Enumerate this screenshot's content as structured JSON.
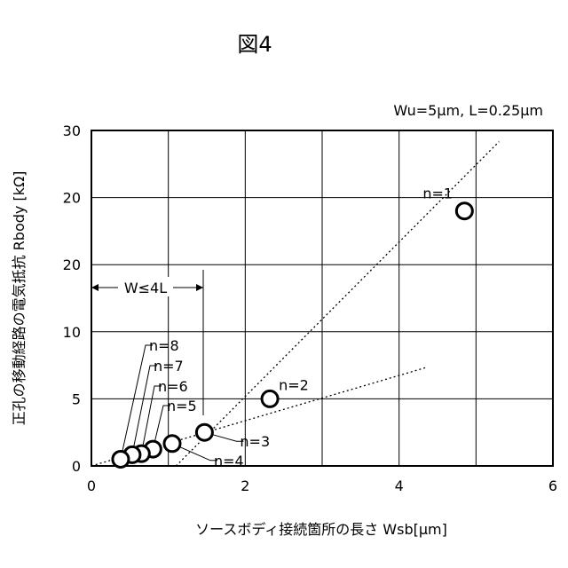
{
  "figure_label": "図4",
  "conditions": "Wu=5μm, L=0.25μm",
  "chart_data": {
    "type": "scatter",
    "xlabel": "ソースボディ接続箇所の長さ Wsb[μm]",
    "ylabel": "正孔の移動経路の電気抵抗 Rbody [kΩ]",
    "xlim": [
      0,
      6
    ],
    "ylim": [
      0,
      30
    ],
    "xticks": [
      "0",
      "2",
      "4",
      "6"
    ],
    "yticks": [
      "0",
      "5",
      "10",
      "20",
      "20",
      "30"
    ],
    "grid": true,
    "points": [
      {
        "label": "n=1",
        "x": 4.85,
        "y": 22.8
      },
      {
        "label": "n=2",
        "x": 2.32,
        "y": 6.0
      },
      {
        "label": "n=3",
        "x": 1.47,
        "y": 3.0
      },
      {
        "label": "n=4",
        "x": 1.05,
        "y": 2.0
      },
      {
        "label": "n=5",
        "x": 0.8,
        "y": 1.5
      },
      {
        "label": "n=6",
        "x": 0.65,
        "y": 1.1
      },
      {
        "label": "n=7",
        "x": 0.53,
        "y": 1.0
      },
      {
        "label": "n=8",
        "x": 0.38,
        "y": 0.6
      }
    ],
    "annotation": "W≤4L",
    "trend_lines": [
      {
        "from": [
          1.1,
          0
        ],
        "to": [
          5.3,
          29
        ]
      },
      {
        "from": [
          0,
          0
        ],
        "to": [
          4.35,
          8.8
        ]
      }
    ]
  }
}
